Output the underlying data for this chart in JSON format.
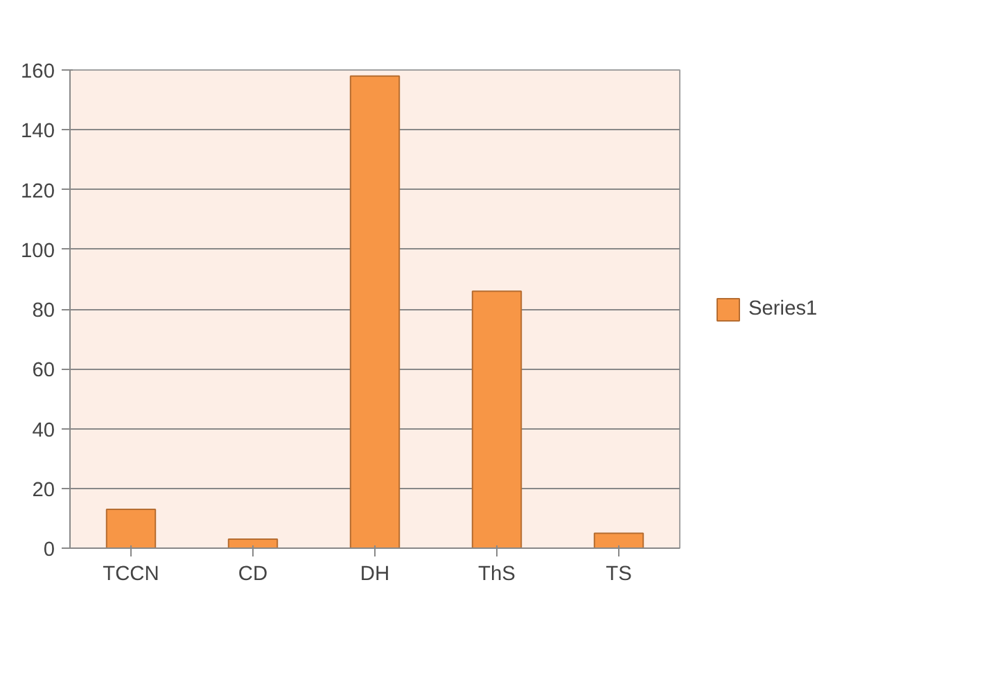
{
  "chart_data": {
    "type": "bar",
    "categories": [
      "TCCN",
      "CD",
      "DH",
      "ThS",
      "TS"
    ],
    "series": [
      {
        "name": "Series1",
        "color": "#f79646",
        "values": [
          13,
          3,
          158,
          86,
          5
        ]
      }
    ],
    "ylim": [
      0,
      160
    ],
    "yticks": [
      0,
      20,
      40,
      60,
      80,
      100,
      120,
      140,
      160
    ],
    "grid": "y",
    "legend": "right"
  }
}
